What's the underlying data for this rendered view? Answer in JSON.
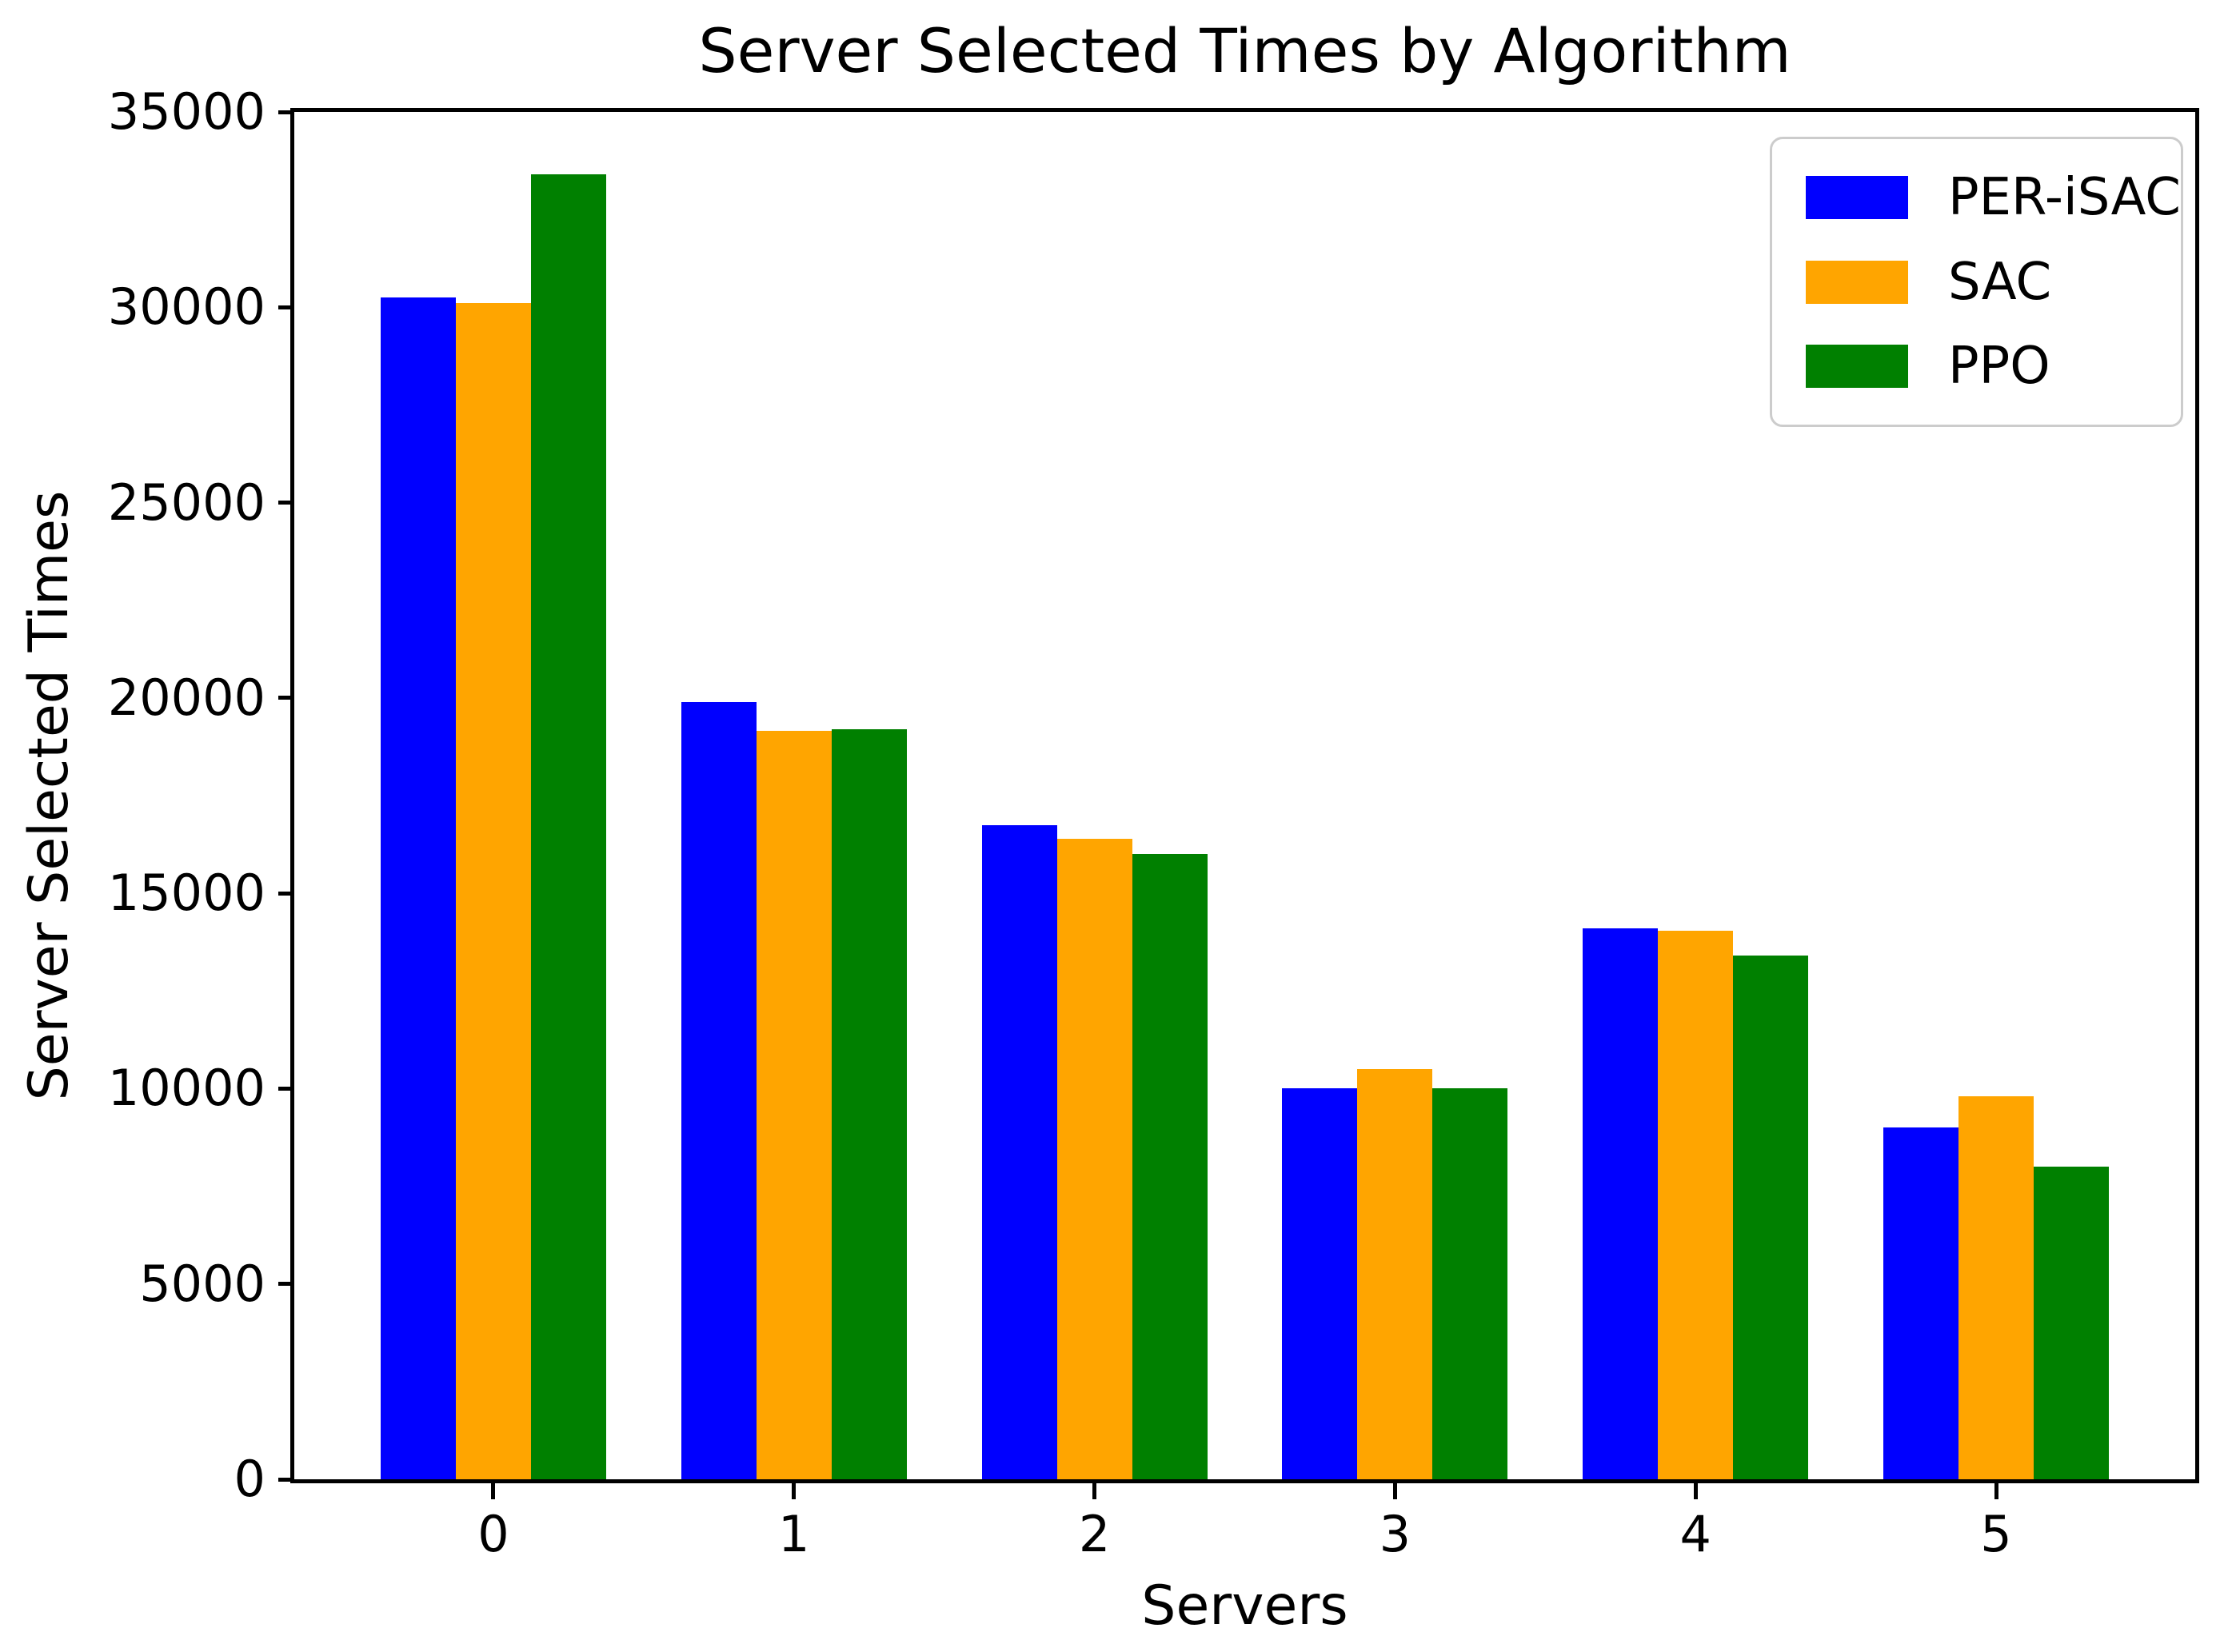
{
  "chart_data": {
    "type": "bar",
    "title": "Server Selected Times by Algorithm",
    "xlabel": "Servers",
    "ylabel": "Server Selected Times",
    "categories": [
      "0",
      "1",
      "2",
      "3",
      "4",
      "5"
    ],
    "series": [
      {
        "name": "PER-iSAC",
        "color": "#0000ff",
        "values": [
          30250,
          19900,
          16750,
          10000,
          14100,
          9000
        ]
      },
      {
        "name": "SAC",
        "color": "#ffa500",
        "values": [
          30100,
          19150,
          16400,
          10500,
          14050,
          9800
        ]
      },
      {
        "name": "PPO",
        "color": "#008000",
        "values": [
          33400,
          19200,
          16000,
          10000,
          13400,
          8000
        ]
      }
    ],
    "ylim": [
      0,
      35000
    ],
    "yticks": [
      0,
      5000,
      10000,
      15000,
      20000,
      25000,
      30000,
      35000
    ],
    "xlim": [
      -0.6625,
      5.6625
    ],
    "bar_width": 0.25,
    "grid": false,
    "legend_position": "upper right",
    "axis_color": "#000000",
    "legend_border_color": "#cccccc",
    "background_color": "#ffffff"
  }
}
